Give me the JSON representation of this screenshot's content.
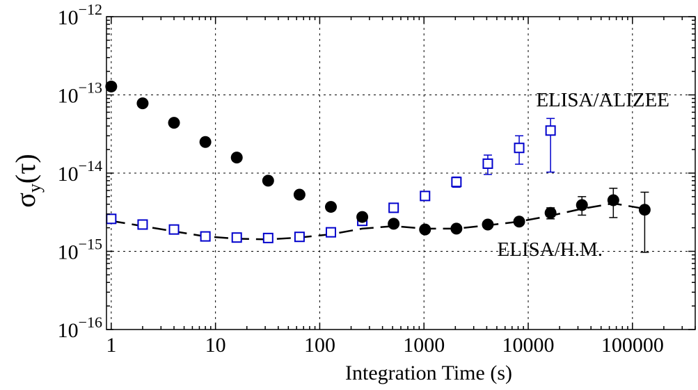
{
  "chart_data": {
    "type": "scatter",
    "x_scale": "log",
    "y_scale": "log",
    "xlim": [
      0.9,
      400000
    ],
    "ylim": [
      1e-16,
      1e-12
    ],
    "grid": true,
    "xlabel": "Integration Time (s)",
    "ylabel": {
      "main": "σ",
      "sub": "y",
      "arg": "(τ)"
    },
    "x_ticks": [
      {
        "value": 1,
        "label": "1"
      },
      {
        "value": 10,
        "label": "10"
      },
      {
        "value": 100,
        "label": "100"
      },
      {
        "value": 1000,
        "label": "1000"
      },
      {
        "value": 10000,
        "label": "10000"
      },
      {
        "value": 100000,
        "label": "100000"
      }
    ],
    "y_ticks": [
      {
        "value": 1e-16,
        "base": "10",
        "exp": "−16"
      },
      {
        "value": 1e-15,
        "base": "10",
        "exp": "−15"
      },
      {
        "value": 1e-14,
        "base": "10",
        "exp": "−14"
      },
      {
        "value": 1e-13,
        "base": "10",
        "exp": "−13"
      },
      {
        "value": 1e-12,
        "base": "10",
        "exp": "−12"
      }
    ],
    "series": [
      {
        "name": "ELISA/ALIZEE",
        "marker": "square-open",
        "color": "#0000cc",
        "points": [
          {
            "x": 1,
            "y": 2.6e-15
          },
          {
            "x": 2,
            "y": 2.2e-15
          },
          {
            "x": 4,
            "y": 1.9e-15
          },
          {
            "x": 8,
            "y": 1.55e-15
          },
          {
            "x": 16,
            "y": 1.5e-15
          },
          {
            "x": 32,
            "y": 1.48e-15
          },
          {
            "x": 64,
            "y": 1.53e-15
          },
          {
            "x": 128,
            "y": 1.75e-15
          },
          {
            "x": 256,
            "y": 2.45e-15
          },
          {
            "x": 512,
            "y": 3.6e-15
          },
          {
            "x": 1024,
            "y": 5.1e-15
          },
          {
            "x": 2048,
            "y": 7.7e-15,
            "err_low": 6.6e-15,
            "err_high": 8.9e-15
          },
          {
            "x": 4096,
            "y": 1.32e-14,
            "err_low": 9.6e-15,
            "err_high": 1.7e-14
          },
          {
            "x": 8192,
            "y": 2.1e-14,
            "err_low": 1.3e-14,
            "err_high": 3e-14
          },
          {
            "x": 16384,
            "y": 3.5e-14,
            "err_low": 1.03e-14,
            "err_high": 5e-14
          }
        ]
      },
      {
        "name": "ELISA/H.M.",
        "marker": "circle-filled",
        "color": "#000000",
        "points": [
          {
            "x": 1,
            "y": 1.28e-13
          },
          {
            "x": 2,
            "y": 7.8e-14
          },
          {
            "x": 4,
            "y": 4.4e-14
          },
          {
            "x": 8,
            "y": 2.5e-14
          },
          {
            "x": 16,
            "y": 1.58e-14
          },
          {
            "x": 32,
            "y": 8e-15
          },
          {
            "x": 64,
            "y": 5.3e-15
          },
          {
            "x": 128,
            "y": 3.7e-15
          },
          {
            "x": 256,
            "y": 2.75e-15
          },
          {
            "x": 512,
            "y": 2.25e-15
          },
          {
            "x": 1024,
            "y": 1.9e-15
          },
          {
            "x": 2048,
            "y": 1.95e-15
          },
          {
            "x": 4096,
            "y": 2.2e-15
          },
          {
            "x": 8192,
            "y": 2.4e-15
          },
          {
            "x": 16384,
            "y": 3.1e-15,
            "err_low": 2.6e-15,
            "err_high": 3.6e-15
          },
          {
            "x": 32768,
            "y": 3.9e-15,
            "err_low": 2.9e-15,
            "err_high": 5e-15
          },
          {
            "x": 65536,
            "y": 4.5e-15,
            "err_low": 2.7e-15,
            "err_high": 6.4e-15
          },
          {
            "x": 131072,
            "y": 3.4e-15,
            "err_low": 9.7e-16,
            "err_high": 5.7e-15
          }
        ]
      }
    ],
    "fit_curve": {
      "style": "dashed",
      "color": "#000000",
      "points": [
        {
          "x": 1,
          "y": 2.45e-15
        },
        {
          "x": 2,
          "y": 2.1e-15
        },
        {
          "x": 4,
          "y": 1.8e-15
        },
        {
          "x": 8,
          "y": 1.55e-15
        },
        {
          "x": 16,
          "y": 1.45e-15
        },
        {
          "x": 32,
          "y": 1.42e-15
        },
        {
          "x": 64,
          "y": 1.5e-15
        },
        {
          "x": 128,
          "y": 1.65e-15
        },
        {
          "x": 256,
          "y": 1.95e-15
        },
        {
          "x": 512,
          "y": 2.1e-15
        },
        {
          "x": 1024,
          "y": 1.95e-15
        },
        {
          "x": 2048,
          "y": 1.95e-15
        },
        {
          "x": 4096,
          "y": 2.15e-15
        },
        {
          "x": 8192,
          "y": 2.4e-15
        },
        {
          "x": 16384,
          "y": 2.85e-15
        },
        {
          "x": 32768,
          "y": 3.5e-15
        },
        {
          "x": 65536,
          "y": 4.1e-15
        },
        {
          "x": 131072,
          "y": 3.5e-15
        }
      ]
    }
  }
}
